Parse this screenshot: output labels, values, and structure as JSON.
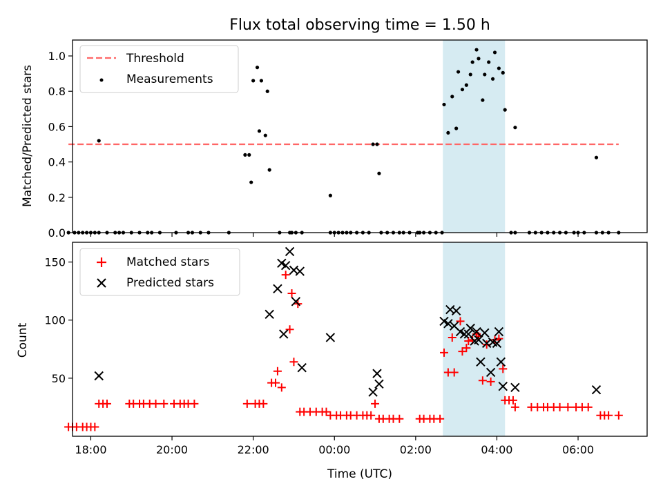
{
  "title": "Flux total observing time = 1.50 h",
  "xlabel": "Time (UTC)",
  "colors": {
    "matched": "#ff0000",
    "predicted": "#000000",
    "measurement": "#000000",
    "threshold": "#ff6666",
    "highlight": "#add8e6"
  },
  "chart_data": [
    {
      "type": "scatter",
      "name": "ratio",
      "ylabel": "Matched/Predicted stars",
      "xlim": [
        -6.45,
        7.7
      ],
      "ylim": [
        0,
        1.09
      ],
      "yticks": [
        0.0,
        0.2,
        0.4,
        0.6,
        0.8,
        1.0
      ],
      "ytick_labels": [
        "0.0",
        "0.2",
        "0.4",
        "0.6",
        "0.8",
        "1.0"
      ],
      "highlight_span": [
        2.67,
        4.2
      ],
      "threshold": {
        "label": "Threshold",
        "value": 0.5,
        "x": [
          -6.55,
          7.0
        ],
        "style": "dashed"
      },
      "legend": {
        "position": "upper left",
        "items": [
          "Threshold",
          "Measurements"
        ]
      },
      "series": [
        {
          "name": "Measurements",
          "marker": "dot",
          "points": [
            [
              -6.55,
              0
            ],
            [
              -6.4,
              0
            ],
            [
              -6.3,
              0
            ],
            [
              -6.2,
              0
            ],
            [
              -6.1,
              0
            ],
            [
              -6.0,
              0
            ],
            [
              -5.9,
              0
            ],
            [
              -5.8,
              0
            ],
            [
              -5.6,
              0
            ],
            [
              -5.4,
              0
            ],
            [
              -5.3,
              0
            ],
            [
              -5.2,
              0
            ],
            [
              -5.0,
              0
            ],
            [
              -4.8,
              0
            ],
            [
              -4.6,
              0
            ],
            [
              -4.5,
              0
            ],
            [
              -4.3,
              0
            ],
            [
              -3.9,
              0
            ],
            [
              -3.6,
              0
            ],
            [
              -3.5,
              0
            ],
            [
              -3.3,
              0
            ],
            [
              -3.1,
              0
            ],
            [
              -2.6,
              0
            ],
            [
              -1.35,
              0
            ],
            [
              -1.1,
              0
            ],
            [
              -1.05,
              0
            ],
            [
              -0.95,
              0
            ],
            [
              -0.8,
              0
            ],
            [
              -0.1,
              0
            ],
            [
              0.0,
              0
            ],
            [
              0.1,
              0
            ],
            [
              0.2,
              0
            ],
            [
              0.3,
              0
            ],
            [
              0.4,
              0
            ],
            [
              0.55,
              0
            ],
            [
              0.7,
              0
            ],
            [
              0.85,
              0
            ],
            [
              1.15,
              0
            ],
            [
              1.3,
              0
            ],
            [
              1.45,
              0
            ],
            [
              1.6,
              0
            ],
            [
              1.7,
              0
            ],
            [
              1.85,
              0
            ],
            [
              2.05,
              0
            ],
            [
              2.1,
              0
            ],
            [
              2.2,
              0
            ],
            [
              2.35,
              0
            ],
            [
              2.5,
              0
            ],
            [
              2.65,
              0
            ],
            [
              4.35,
              0
            ],
            [
              4.45,
              0
            ],
            [
              4.8,
              0
            ],
            [
              4.95,
              0
            ],
            [
              5.1,
              0
            ],
            [
              5.25,
              0
            ],
            [
              5.4,
              0
            ],
            [
              5.55,
              0
            ],
            [
              5.7,
              0
            ],
            [
              5.9,
              0
            ],
            [
              6.0,
              0
            ],
            [
              6.15,
              0
            ],
            [
              6.45,
              0
            ],
            [
              6.6,
              0
            ],
            [
              6.75,
              0
            ],
            [
              7.0,
              0
            ],
            [
              -5.8,
              0.52
            ],
            [
              -2.2,
              0.44
            ],
            [
              -2.1,
              0.44
            ],
            [
              -2.05,
              0.285
            ],
            [
              -2.0,
              0.86
            ],
            [
              -1.9,
              0.935
            ],
            [
              -1.85,
              0.575
            ],
            [
              -1.8,
              0.86
            ],
            [
              -1.7,
              0.55
            ],
            [
              -1.65,
              0.8
            ],
            [
              -1.6,
              0.355
            ],
            [
              -0.1,
              0.21
            ],
            [
              0.95,
              0.5
            ],
            [
              1.05,
              0.5
            ],
            [
              1.1,
              0.335
            ],
            [
              2.7,
              0.725
            ],
            [
              2.8,
              0.565
            ],
            [
              2.9,
              0.77
            ],
            [
              3.0,
              0.59
            ],
            [
              3.05,
              0.91
            ],
            [
              3.15,
              0.81
            ],
            [
              3.25,
              0.835
            ],
            [
              3.35,
              0.895
            ],
            [
              3.4,
              0.965
            ],
            [
              3.5,
              1.035
            ],
            [
              3.55,
              0.985
            ],
            [
              3.65,
              0.75
            ],
            [
              3.7,
              0.895
            ],
            [
              3.8,
              0.965
            ],
            [
              3.9,
              0.87
            ],
            [
              3.95,
              1.02
            ],
            [
              4.05,
              0.93
            ],
            [
              4.15,
              0.905
            ],
            [
              4.2,
              0.695
            ],
            [
              4.45,
              0.595
            ],
            [
              6.45,
              0.425
            ]
          ]
        }
      ]
    },
    {
      "type": "scatter",
      "name": "counts",
      "ylabel": "Count",
      "xlim": [
        -6.45,
        7.7
      ],
      "ylim": [
        0,
        167
      ],
      "yticks": [
        50,
        100,
        150
      ],
      "ytick_labels": [
        "50",
        "100",
        "150"
      ],
      "xticks": [
        -6,
        -4,
        -2,
        0,
        2,
        4,
        6
      ],
      "xtick_labels": [
        "18:00",
        "20:00",
        "22:00",
        "00:00",
        "02:00",
        "04:00",
        "06:00"
      ],
      "highlight_span": [
        2.67,
        4.2
      ],
      "legend": {
        "position": "upper left",
        "items": [
          "Matched stars",
          "Predicted stars"
        ]
      },
      "series": [
        {
          "name": "Matched stars",
          "marker": "plus",
          "points": [
            [
              -6.55,
              8
            ],
            [
              -6.45,
              8
            ],
            [
              -6.35,
              8
            ],
            [
              -6.2,
              8
            ],
            [
              -6.1,
              8
            ],
            [
              -6.0,
              8
            ],
            [
              -5.9,
              8
            ],
            [
              -5.8,
              28
            ],
            [
              -5.7,
              28
            ],
            [
              -5.6,
              28
            ],
            [
              -5.05,
              28
            ],
            [
              -4.95,
              28
            ],
            [
              -4.8,
              28
            ],
            [
              -4.7,
              28
            ],
            [
              -4.55,
              28
            ],
            [
              -4.4,
              28
            ],
            [
              -4.2,
              28
            ],
            [
              -3.95,
              28
            ],
            [
              -3.8,
              28
            ],
            [
              -3.7,
              28
            ],
            [
              -3.6,
              28
            ],
            [
              -3.45,
              28
            ],
            [
              -2.15,
              28
            ],
            [
              -1.95,
              28
            ],
            [
              -1.85,
              28
            ],
            [
              -1.75,
              28
            ],
            [
              -1.55,
              46
            ],
            [
              -1.45,
              46
            ],
            [
              -1.4,
              56
            ],
            [
              -1.3,
              42
            ],
            [
              -1.2,
              139
            ],
            [
              -1.1,
              92
            ],
            [
              -1.05,
              123
            ],
            [
              -1.0,
              64
            ],
            [
              -0.9,
              114
            ],
            [
              -0.85,
              21
            ],
            [
              -0.75,
              21
            ],
            [
              -0.6,
              21
            ],
            [
              -0.45,
              21
            ],
            [
              -0.3,
              21
            ],
            [
              -0.2,
              21
            ],
            [
              -0.1,
              18
            ],
            [
              0.05,
              18
            ],
            [
              0.15,
              18
            ],
            [
              0.3,
              18
            ],
            [
              0.4,
              18
            ],
            [
              0.55,
              18
            ],
            [
              0.7,
              18
            ],
            [
              0.8,
              18
            ],
            [
              0.9,
              18
            ],
            [
              1.0,
              28
            ],
            [
              1.1,
              15
            ],
            [
              1.2,
              15
            ],
            [
              1.35,
              15
            ],
            [
              1.45,
              15
            ],
            [
              1.6,
              15
            ],
            [
              2.1,
              15
            ],
            [
              2.2,
              15
            ],
            [
              2.35,
              15
            ],
            [
              2.45,
              15
            ],
            [
              2.6,
              15
            ],
            [
              2.7,
              72
            ],
            [
              2.8,
              55
            ],
            [
              2.9,
              85
            ],
            [
              2.95,
              55
            ],
            [
              3.1,
              99
            ],
            [
              3.15,
              73
            ],
            [
              3.25,
              76
            ],
            [
              3.3,
              82
            ],
            [
              3.4,
              83
            ],
            [
              3.5,
              88
            ],
            [
              3.55,
              86
            ],
            [
              3.65,
              48
            ],
            [
              3.75,
              79
            ],
            [
              3.85,
              47
            ],
            [
              3.95,
              83
            ],
            [
              4.05,
              84
            ],
            [
              4.15,
              58
            ],
            [
              4.2,
              31
            ],
            [
              4.3,
              31
            ],
            [
              4.4,
              31
            ],
            [
              4.45,
              25
            ],
            [
              4.85,
              25
            ],
            [
              5.0,
              25
            ],
            [
              5.15,
              25
            ],
            [
              5.25,
              25
            ],
            [
              5.4,
              25
            ],
            [
              5.55,
              25
            ],
            [
              5.75,
              25
            ],
            [
              5.95,
              25
            ],
            [
              6.1,
              25
            ],
            [
              6.25,
              25
            ],
            [
              6.55,
              18
            ],
            [
              6.65,
              18
            ],
            [
              6.75,
              18
            ],
            [
              7.0,
              18
            ]
          ]
        },
        {
          "name": "Predicted stars",
          "marker": "x",
          "points": [
            [
              -5.8,
              52
            ],
            [
              -1.6,
              105
            ],
            [
              -1.4,
              127
            ],
            [
              -1.3,
              149
            ],
            [
              -1.25,
              88
            ],
            [
              -1.2,
              147
            ],
            [
              -1.1,
              159
            ],
            [
              -1.0,
              143
            ],
            [
              -0.95,
              116
            ],
            [
              -0.85,
              142
            ],
            [
              -0.8,
              59
            ],
            [
              -0.1,
              85
            ],
            [
              0.95,
              38
            ],
            [
              1.05,
              54
            ],
            [
              1.1,
              45
            ],
            [
              2.7,
              99
            ],
            [
              2.8,
              97
            ],
            [
              2.85,
              109
            ],
            [
              2.95,
              95
            ],
            [
              3.0,
              108
            ],
            [
              3.1,
              90
            ],
            [
              3.2,
              88
            ],
            [
              3.3,
              88
            ],
            [
              3.35,
              93
            ],
            [
              3.45,
              82
            ],
            [
              3.5,
              90
            ],
            [
              3.55,
              83
            ],
            [
              3.6,
              64
            ],
            [
              3.7,
              89
            ],
            [
              3.75,
              80
            ],
            [
              3.85,
              55
            ],
            [
              3.9,
              81
            ],
            [
              4.0,
              80
            ],
            [
              4.05,
              90
            ],
            [
              4.1,
              64
            ],
            [
              4.15,
              43
            ],
            [
              4.45,
              42
            ],
            [
              6.45,
              40
            ]
          ]
        }
      ]
    }
  ]
}
